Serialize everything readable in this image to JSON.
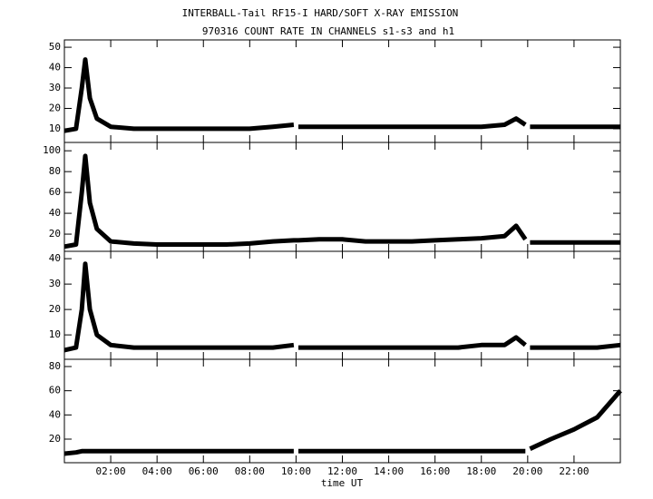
{
  "chart_data": [
    {
      "type": "line",
      "title": "INTERBALL-Tail RF15-I HARD/SOFT X-RAY EMISSION",
      "subtitle": "970316  COUNT RATE IN CHANNELS s1-s3 and h1",
      "color": "#000000",
      "x": [
        0,
        0.5,
        0.75,
        0.9,
        1.1,
        1.4,
        2,
        3,
        4,
        5,
        6,
        7,
        8,
        9,
        9.9,
        10,
        10.1,
        11,
        12,
        13,
        14,
        15,
        16,
        17,
        18,
        19,
        19.5,
        19.9,
        20,
        20.1,
        21,
        22,
        23,
        24
      ],
      "values": [
        9,
        10,
        30,
        44,
        25,
        15,
        11,
        10,
        10,
        10,
        10,
        10,
        10,
        11,
        12,
        null,
        11,
        11,
        11,
        11,
        11,
        11,
        11,
        11,
        11,
        12,
        15,
        12,
        null,
        11,
        11,
        11,
        11,
        11
      ],
      "xlim": [
        0,
        24
      ],
      "ylim": [
        3.3,
        53.6
      ],
      "yticks": [
        10,
        20,
        30,
        40,
        50
      ]
    },
    {
      "type": "line",
      "color": "#000000",
      "x": [
        0,
        0.5,
        0.75,
        0.9,
        1.1,
        1.4,
        2,
        3,
        4,
        5,
        6,
        7,
        8,
        9,
        9.9,
        10,
        10.1,
        11,
        12,
        13,
        14,
        15,
        16,
        17,
        18,
        19,
        19.5,
        19.9,
        20,
        20.1,
        21,
        22,
        23,
        24
      ],
      "values": [
        8,
        10,
        60,
        95,
        50,
        25,
        13,
        11,
        10,
        10,
        10,
        10,
        11,
        13,
        14,
        14,
        14,
        15,
        15,
        13,
        13,
        13,
        14,
        15,
        16,
        18,
        28,
        15,
        null,
        12,
        12,
        12,
        12,
        12
      ],
      "xlim": [
        0,
        24
      ],
      "ylim": [
        3.5,
        108
      ],
      "yticks": [
        20,
        40,
        60,
        80,
        100
      ]
    },
    {
      "type": "line",
      "color": "#000000",
      "x": [
        0,
        0.5,
        0.75,
        0.9,
        1.1,
        1.4,
        2,
        3,
        4,
        5,
        6,
        7,
        8,
        9,
        9.9,
        10,
        10.1,
        11,
        12,
        13,
        14,
        15,
        16,
        17,
        18,
        19,
        19.5,
        19.9,
        20,
        20.1,
        21,
        22,
        23,
        24
      ],
      "values": [
        4,
        5,
        20,
        38,
        20,
        10,
        6,
        5,
        5,
        5,
        5,
        5,
        5,
        5,
        6,
        null,
        5,
        5,
        5,
        5,
        5,
        5,
        5,
        5,
        6,
        6,
        9,
        6,
        null,
        5,
        5,
        5,
        5,
        6
      ],
      "xlim": [
        0,
        24
      ],
      "ylim": [
        0.4,
        42.9
      ],
      "yticks": [
        10,
        20,
        30,
        40
      ]
    },
    {
      "type": "line",
      "color": "#000000",
      "xlabel": "time UT",
      "x": [
        0,
        0.5,
        0.75,
        0.9,
        1.1,
        1.4,
        2,
        3,
        4,
        5,
        6,
        7,
        8,
        9,
        9.9,
        10,
        10.1,
        11,
        12,
        13,
        14,
        15,
        16,
        17,
        18,
        19,
        19.5,
        19.9,
        20,
        20.1,
        21,
        22,
        23,
        24
      ],
      "values": [
        8,
        9,
        10,
        10,
        10,
        10,
        10,
        10,
        10,
        10,
        10,
        10,
        10,
        10,
        10,
        null,
        10,
        10,
        10,
        10,
        10,
        10,
        10,
        10,
        10,
        10,
        10,
        10,
        null,
        12,
        20,
        28,
        38,
        60
      ],
      "xlim": [
        0,
        24
      ],
      "ylim": [
        0.5,
        86
      ],
      "yticks": [
        20,
        40,
        60,
        80
      ],
      "xticks": [
        {
          "value": 2,
          "label": "02:00"
        },
        {
          "value": 4,
          "label": "04:00"
        },
        {
          "value": 6,
          "label": "06:00"
        },
        {
          "value": 8,
          "label": "08:00"
        },
        {
          "value": 10,
          "label": "10:00"
        },
        {
          "value": 12,
          "label": "12:00"
        },
        {
          "value": 14,
          "label": "14:00"
        },
        {
          "value": 16,
          "label": "16:00"
        },
        {
          "value": 18,
          "label": "18:00"
        },
        {
          "value": 20,
          "label": "20:00"
        },
        {
          "value": 22,
          "label": "22:00"
        }
      ]
    }
  ]
}
